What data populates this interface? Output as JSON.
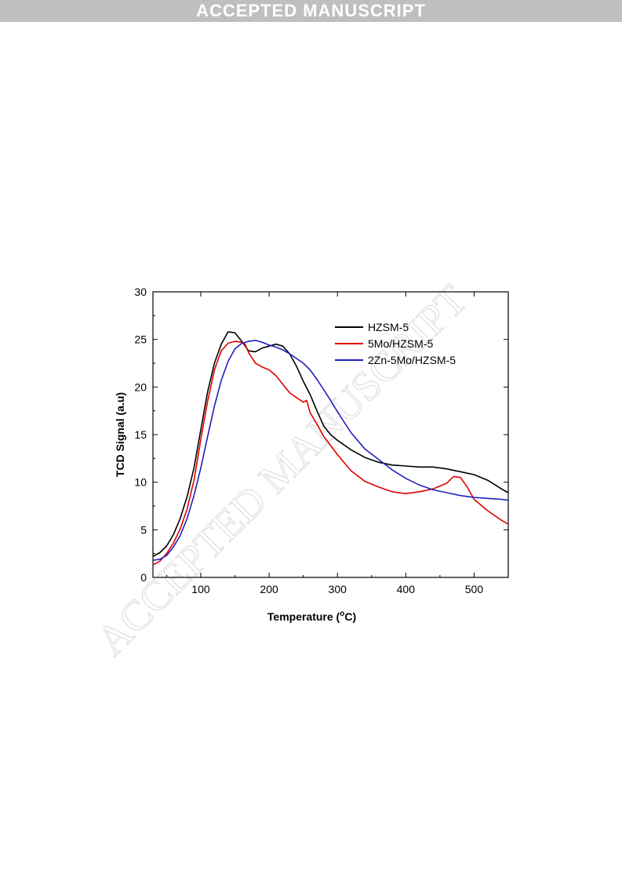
{
  "header": {
    "banner_text": "ACCEPTED MANUSCRIPT"
  },
  "watermark_text": "ACCEPTED MANUSCRIPT",
  "chart_data": {
    "type": "line",
    "title": "",
    "xlabel": "Temperature (°C)",
    "xlabel_parts": {
      "main": "Temperature (",
      "sup": "o",
      "tail": "C)"
    },
    "ylabel": "TCD Signal (a.u)",
    "xlim": [
      30,
      550
    ],
    "ylim": [
      0,
      30
    ],
    "x_ticks": [
      100,
      200,
      300,
      400,
      500
    ],
    "y_ticks": [
      0,
      5,
      10,
      15,
      20,
      25,
      30
    ],
    "grid": false,
    "legend_position": "top-right",
    "series": [
      {
        "name": "HZSM-5",
        "color": "#000000",
        "x": [
          30,
          40,
          50,
          60,
          70,
          80,
          90,
          100,
          110,
          120,
          130,
          140,
          150,
          160,
          170,
          180,
          190,
          200,
          210,
          220,
          230,
          240,
          250,
          260,
          270,
          280,
          290,
          300,
          320,
          340,
          360,
          380,
          400,
          420,
          440,
          460,
          480,
          500,
          520,
          540,
          550
        ],
        "y": [
          2.2,
          2.6,
          3.3,
          4.5,
          6.2,
          8.5,
          11.5,
          15.5,
          19.5,
          22.5,
          24.5,
          25.8,
          25.7,
          24.8,
          23.8,
          23.7,
          24.1,
          24.3,
          24.5,
          24.3,
          23.5,
          22.2,
          20.6,
          19.2,
          17.5,
          15.9,
          15.0,
          14.4,
          13.4,
          12.6,
          12.1,
          11.8,
          11.7,
          11.6,
          11.6,
          11.4,
          11.1,
          10.8,
          10.2,
          9.3,
          8.9
        ]
      },
      {
        "name": "5Mo/HZSM-5",
        "color": "#e00000",
        "x": [
          30,
          40,
          50,
          60,
          70,
          80,
          90,
          100,
          110,
          120,
          130,
          140,
          150,
          160,
          165,
          170,
          180,
          190,
          200,
          210,
          220,
          230,
          240,
          250,
          255,
          260,
          270,
          280,
          300,
          320,
          340,
          360,
          380,
          400,
          420,
          440,
          460,
          470,
          480,
          490,
          500,
          520,
          540,
          550
        ],
        "y": [
          1.3,
          1.7,
          2.5,
          3.6,
          5.1,
          7.2,
          10.2,
          14.5,
          18.5,
          21.8,
          23.8,
          24.6,
          24.8,
          24.7,
          24.5,
          23.6,
          22.5,
          22.1,
          21.8,
          21.2,
          20.3,
          19.4,
          18.9,
          18.4,
          18.6,
          17.3,
          16.1,
          14.8,
          12.9,
          11.2,
          10.1,
          9.5,
          9.0,
          8.8,
          9.0,
          9.3,
          9.9,
          10.6,
          10.5,
          9.5,
          8.2,
          7.0,
          6.0,
          5.6
        ]
      },
      {
        "name": "2Zn-5Mo/HZSM-5",
        "color": "#2020c0",
        "x": [
          30,
          40,
          50,
          60,
          70,
          80,
          90,
          100,
          110,
          120,
          130,
          140,
          150,
          160,
          170,
          180,
          190,
          200,
          210,
          220,
          230,
          240,
          250,
          260,
          270,
          280,
          290,
          300,
          320,
          340,
          360,
          380,
          400,
          420,
          440,
          460,
          480,
          500,
          520,
          540,
          550
        ],
        "y": [
          1.8,
          1.9,
          2.3,
          3.2,
          4.4,
          6.2,
          8.6,
          11.5,
          14.8,
          18.0,
          20.7,
          22.7,
          24.0,
          24.6,
          24.8,
          24.9,
          24.7,
          24.4,
          24.2,
          23.9,
          23.5,
          23.0,
          22.5,
          21.8,
          20.8,
          19.7,
          18.6,
          17.4,
          15.2,
          13.5,
          12.4,
          11.3,
          10.4,
          9.7,
          9.2,
          8.9,
          8.6,
          8.4,
          8.3,
          8.2,
          8.1
        ]
      }
    ]
  }
}
